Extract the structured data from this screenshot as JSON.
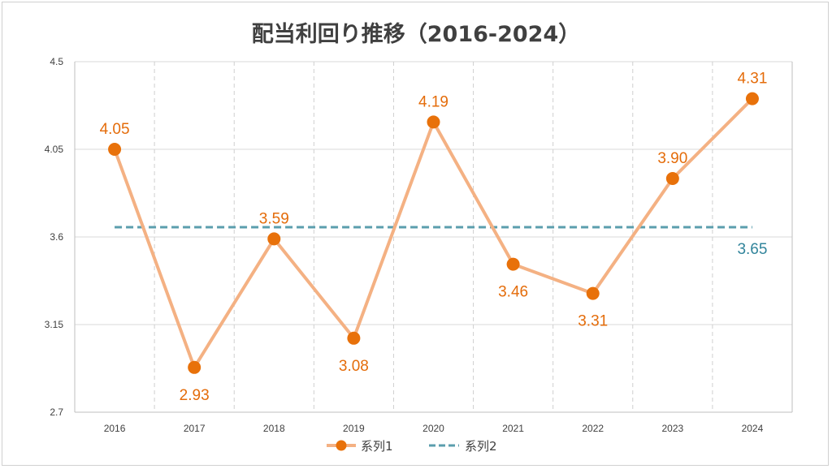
{
  "chart_data": {
    "type": "line",
    "title": "配当利回り推移（2016-2024）",
    "categories": [
      "2016",
      "2017",
      "2018",
      "2019",
      "2020",
      "2021",
      "2022",
      "2023",
      "2024"
    ],
    "ylim": [
      2.7,
      4.5
    ],
    "yticks": [
      "2.7",
      "3.15",
      "3.6",
      "4.05",
      "4.5"
    ],
    "grid": true,
    "legend_position": "bottom",
    "series": [
      {
        "name": "系列1",
        "values": [
          4.05,
          2.93,
          3.59,
          3.08,
          4.19,
          3.46,
          3.31,
          3.9,
          4.31
        ],
        "labels": [
          "4.05",
          "2.93",
          "3.59",
          "3.08",
          "4.19",
          "3.46",
          "3.31",
          "3.90",
          "4.31"
        ],
        "color": "#F4B183",
        "marker_color": "#E8710A",
        "label_color": "#E46C0A"
      },
      {
        "name": "系列2",
        "values": [
          3.65,
          3.65,
          3.65,
          3.65,
          3.65,
          3.65,
          3.65,
          3.65,
          3.65
        ],
        "end_label": "3.65",
        "color": "#5B9EAD",
        "label_color": "#31849B"
      }
    ]
  }
}
